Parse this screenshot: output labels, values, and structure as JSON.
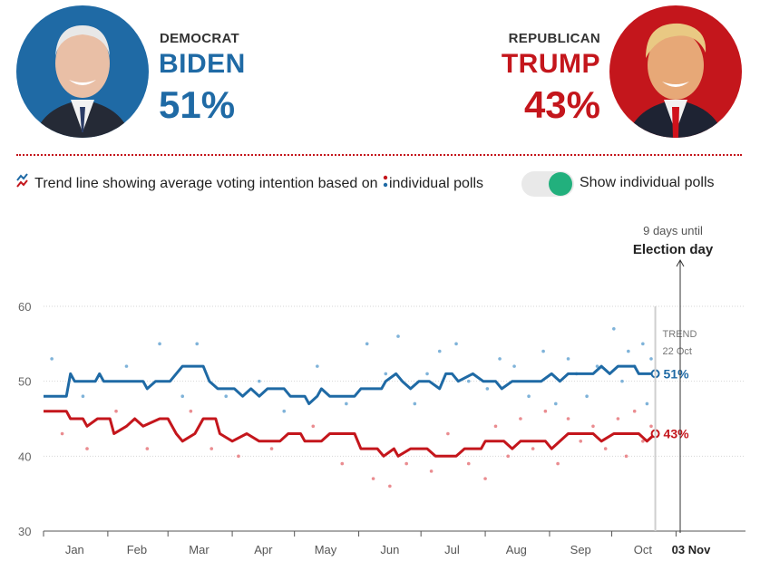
{
  "democrat": {
    "party": "DEMOCRAT",
    "name": "BIDEN",
    "percent": "51%",
    "photo": "biden-portrait",
    "color": "#1f6aa5"
  },
  "republican": {
    "party": "REPUBLICAN",
    "name": "TRUMP",
    "percent": "43%",
    "photo": "trump-portrait",
    "color": "#c4161c"
  },
  "legend": {
    "text_before": "Trend line showing average voting intention based on",
    "text_after": "individual polls",
    "trend_icon": "trend-line-icon",
    "dots_icon": "poll-dots-icon"
  },
  "toggle": {
    "label": "Show individual polls",
    "on": true,
    "on_color": "#22b07d"
  },
  "election": {
    "countdown": "9 days until",
    "label": "Election day",
    "date_label": "03 Nov"
  },
  "chart_data": {
    "type": "line",
    "ylim": [
      30,
      60
    ],
    "y_ticks": [
      "30",
      "40",
      "50",
      "60"
    ],
    "x_ticks": [
      "Jan",
      "Feb",
      "Mar",
      "Apr",
      "May",
      "Jun",
      "Jul",
      "Aug",
      "Sep",
      "Oct"
    ],
    "x_start": "2020-01-01",
    "x_end": "2020-11-03",
    "grid": true,
    "trend_label": [
      "TREND",
      "22 Oct"
    ],
    "series": [
      {
        "party": "dem",
        "end_label": "51%",
        "color": "#1f6aa5",
        "trend": [
          [
            "2020-01-01",
            48
          ],
          [
            "2020-01-12",
            48
          ],
          [
            "2020-01-14",
            51
          ],
          [
            "2020-01-16",
            50
          ],
          [
            "2020-01-26",
            50
          ],
          [
            "2020-01-28",
            51
          ],
          [
            "2020-01-30",
            50
          ],
          [
            "2020-02-18",
            50
          ],
          [
            "2020-02-20",
            49
          ],
          [
            "2020-02-24",
            50
          ],
          [
            "2020-03-02",
            50
          ],
          [
            "2020-03-05",
            51
          ],
          [
            "2020-03-08",
            52
          ],
          [
            "2020-03-18",
            52
          ],
          [
            "2020-03-21",
            50
          ],
          [
            "2020-03-25",
            49
          ],
          [
            "2020-04-02",
            49
          ],
          [
            "2020-04-06",
            48
          ],
          [
            "2020-04-10",
            49
          ],
          [
            "2020-04-14",
            48
          ],
          [
            "2020-04-18",
            49
          ],
          [
            "2020-04-26",
            49
          ],
          [
            "2020-04-29",
            48
          ],
          [
            "2020-05-06",
            48
          ],
          [
            "2020-05-08",
            47
          ],
          [
            "2020-05-12",
            48
          ],
          [
            "2020-05-14",
            49
          ],
          [
            "2020-05-18",
            48
          ],
          [
            "2020-05-30",
            48
          ],
          [
            "2020-06-02",
            49
          ],
          [
            "2020-06-12",
            49
          ],
          [
            "2020-06-14",
            50
          ],
          [
            "2020-06-19",
            51
          ],
          [
            "2020-06-22",
            50
          ],
          [
            "2020-06-26",
            49
          ],
          [
            "2020-06-30",
            50
          ],
          [
            "2020-07-05",
            50
          ],
          [
            "2020-07-10",
            49
          ],
          [
            "2020-07-13",
            51
          ],
          [
            "2020-07-16",
            51
          ],
          [
            "2020-07-19",
            50
          ],
          [
            "2020-07-26",
            51
          ],
          [
            "2020-07-31",
            50
          ],
          [
            "2020-08-06",
            50
          ],
          [
            "2020-08-09",
            49
          ],
          [
            "2020-08-14",
            50
          ],
          [
            "2020-08-28",
            50
          ],
          [
            "2020-09-02",
            51
          ],
          [
            "2020-09-06",
            50
          ],
          [
            "2020-09-10",
            51
          ],
          [
            "2020-09-22",
            51
          ],
          [
            "2020-09-26",
            52
          ],
          [
            "2020-09-30",
            51
          ],
          [
            "2020-10-04",
            52
          ],
          [
            "2020-10-12",
            52
          ],
          [
            "2020-10-14",
            51
          ],
          [
            "2020-10-22",
            51
          ]
        ]
      },
      {
        "party": "rep",
        "end_label": "43%",
        "color": "#c4161c",
        "trend": [
          [
            "2020-01-01",
            46
          ],
          [
            "2020-01-12",
            46
          ],
          [
            "2020-01-14",
            45
          ],
          [
            "2020-01-20",
            45
          ],
          [
            "2020-01-22",
            44
          ],
          [
            "2020-01-27",
            45
          ],
          [
            "2020-02-02",
            45
          ],
          [
            "2020-02-04",
            43
          ],
          [
            "2020-02-10",
            44
          ],
          [
            "2020-02-14",
            45
          ],
          [
            "2020-02-18",
            44
          ],
          [
            "2020-02-26",
            45
          ],
          [
            "2020-03-01",
            45
          ],
          [
            "2020-03-05",
            43
          ],
          [
            "2020-03-08",
            42
          ],
          [
            "2020-03-14",
            43
          ],
          [
            "2020-03-18",
            45
          ],
          [
            "2020-03-24",
            45
          ],
          [
            "2020-03-26",
            43
          ],
          [
            "2020-04-01",
            42
          ],
          [
            "2020-04-08",
            43
          ],
          [
            "2020-04-14",
            42
          ],
          [
            "2020-04-24",
            42
          ],
          [
            "2020-04-28",
            43
          ],
          [
            "2020-05-04",
            43
          ],
          [
            "2020-05-06",
            42
          ],
          [
            "2020-05-14",
            42
          ],
          [
            "2020-05-18",
            43
          ],
          [
            "2020-05-30",
            43
          ],
          [
            "2020-06-02",
            41
          ],
          [
            "2020-06-10",
            41
          ],
          [
            "2020-06-13",
            40
          ],
          [
            "2020-06-18",
            41
          ],
          [
            "2020-06-20",
            40
          ],
          [
            "2020-06-26",
            41
          ],
          [
            "2020-07-04",
            41
          ],
          [
            "2020-07-08",
            40
          ],
          [
            "2020-07-18",
            40
          ],
          [
            "2020-07-22",
            41
          ],
          [
            "2020-07-30",
            41
          ],
          [
            "2020-08-01",
            42
          ],
          [
            "2020-08-10",
            42
          ],
          [
            "2020-08-14",
            41
          ],
          [
            "2020-08-18",
            42
          ],
          [
            "2020-08-30",
            42
          ],
          [
            "2020-09-02",
            41
          ],
          [
            "2020-09-06",
            42
          ],
          [
            "2020-09-10",
            43
          ],
          [
            "2020-09-22",
            43
          ],
          [
            "2020-09-26",
            42
          ],
          [
            "2020-10-02",
            43
          ],
          [
            "2020-10-14",
            43
          ],
          [
            "2020-10-18",
            42
          ],
          [
            "2020-10-22",
            43
          ]
        ]
      }
    ],
    "dem_polls": [
      [
        "2020-01-05",
        53
      ],
      [
        "2020-01-20",
        48
      ],
      [
        "2020-02-10",
        52
      ],
      [
        "2020-02-26",
        55
      ],
      [
        "2020-03-08",
        48
      ],
      [
        "2020-03-15",
        55
      ],
      [
        "2020-03-29",
        48
      ],
      [
        "2020-04-14",
        50
      ],
      [
        "2020-04-26",
        46
      ],
      [
        "2020-05-12",
        52
      ],
      [
        "2020-05-26",
        47
      ],
      [
        "2020-06-05",
        55
      ],
      [
        "2020-06-14",
        51
      ],
      [
        "2020-06-20",
        56
      ],
      [
        "2020-06-28",
        47
      ],
      [
        "2020-07-04",
        51
      ],
      [
        "2020-07-10",
        54
      ],
      [
        "2020-07-18",
        55
      ],
      [
        "2020-07-24",
        50
      ],
      [
        "2020-08-02",
        49
      ],
      [
        "2020-08-08",
        53
      ],
      [
        "2020-08-15",
        52
      ],
      [
        "2020-08-22",
        48
      ],
      [
        "2020-08-29",
        54
      ],
      [
        "2020-09-04",
        47
      ],
      [
        "2020-09-10",
        53
      ],
      [
        "2020-09-14",
        51
      ],
      [
        "2020-09-19",
        48
      ],
      [
        "2020-09-24",
        52
      ],
      [
        "2020-10-02",
        57
      ],
      [
        "2020-10-06",
        50
      ],
      [
        "2020-10-09",
        54
      ],
      [
        "2020-10-12",
        52
      ],
      [
        "2020-10-16",
        55
      ],
      [
        "2020-10-18",
        47
      ],
      [
        "2020-10-20",
        53
      ]
    ],
    "rep_polls": [
      [
        "2020-01-10",
        43
      ],
      [
        "2020-01-22",
        41
      ],
      [
        "2020-02-05",
        46
      ],
      [
        "2020-02-20",
        41
      ],
      [
        "2020-03-12",
        46
      ],
      [
        "2020-03-22",
        41
      ],
      [
        "2020-04-04",
        40
      ],
      [
        "2020-04-20",
        41
      ],
      [
        "2020-05-10",
        44
      ],
      [
        "2020-05-24",
        39
      ],
      [
        "2020-06-08",
        37
      ],
      [
        "2020-06-16",
        36
      ],
      [
        "2020-06-24",
        39
      ],
      [
        "2020-07-06",
        38
      ],
      [
        "2020-07-14",
        43
      ],
      [
        "2020-07-24",
        39
      ],
      [
        "2020-08-01",
        37
      ],
      [
        "2020-08-06",
        44
      ],
      [
        "2020-08-12",
        40
      ],
      [
        "2020-08-18",
        45
      ],
      [
        "2020-08-24",
        41
      ],
      [
        "2020-08-30",
        46
      ],
      [
        "2020-09-05",
        39
      ],
      [
        "2020-09-10",
        45
      ],
      [
        "2020-09-16",
        42
      ],
      [
        "2020-09-22",
        44
      ],
      [
        "2020-09-28",
        41
      ],
      [
        "2020-10-04",
        45
      ],
      [
        "2020-10-08",
        40
      ],
      [
        "2020-10-12",
        46
      ],
      [
        "2020-10-16",
        42
      ],
      [
        "2020-10-20",
        44
      ]
    ]
  }
}
